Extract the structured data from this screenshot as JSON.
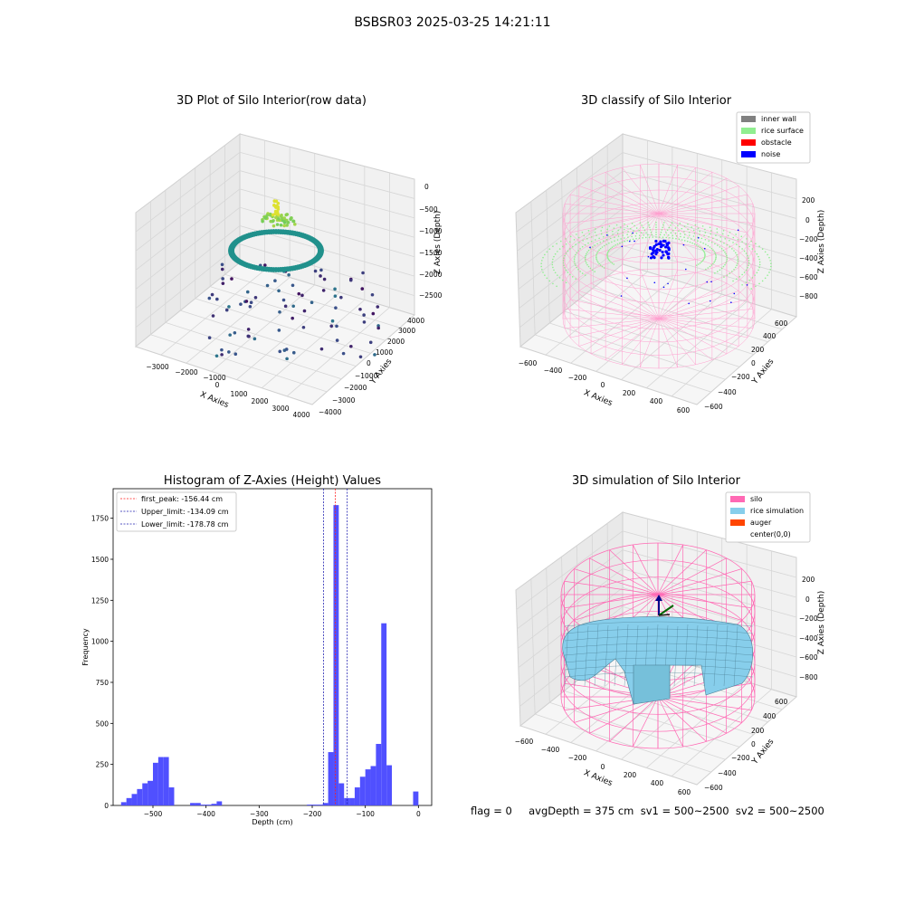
{
  "suptitle": "BSBSR03 2025-03-25 14:21:11",
  "footer": "flag = 0     avgDepth = 375 cm  sv1 = 500~2500  sv2 = 500~2500",
  "colors": {
    "hist_bar": "#5050ff",
    "peak_line": "#ff2020",
    "limit_line": "#2020b0",
    "inner_wall": "#808080",
    "rice_surface": "#90ee90",
    "obstacle": "#ff0000",
    "noise": "#0000ff",
    "silo": "#ff69b4",
    "rice_simulation": "#87ceeb",
    "auger": "#ff4500"
  },
  "chart_data": [
    {
      "type": "scatter",
      "title": "3D Plot of Silo Interior(row data)",
      "xlabel": "X Axies",
      "ylabel": "Y Axies",
      "zlabel": "Z Axies (Depth)",
      "x_ticks": [
        "−3000",
        "−2000",
        "−1000",
        "0",
        "1000",
        "2000",
        "3000",
        "4000"
      ],
      "y_ticks": [
        "−4000",
        "−3000",
        "−2000",
        "−1000",
        "0",
        "1000",
        "2000",
        "3000",
        "4000"
      ],
      "z_ticks": [
        "0",
        "−500",
        "−1000",
        "−1500",
        "−2000",
        "−2500"
      ],
      "colormap": "viridis"
    },
    {
      "type": "scatter",
      "title": "3D classify of Silo Interior",
      "xlabel": "X Axies",
      "ylabel": "Y Axies",
      "zlabel": "Z Axies (Depth)",
      "x_ticks": [
        "−600",
        "−400",
        "−200",
        "0",
        "200",
        "400",
        "600"
      ],
      "y_ticks": [
        "−600",
        "−400",
        "−200",
        "0",
        "200",
        "400",
        "600"
      ],
      "z_ticks": [
        "200",
        "0",
        "−200",
        "−400",
        "−600",
        "−800"
      ],
      "legend": [
        "inner wall",
        "rice surface",
        "obstacle",
        "noise"
      ],
      "legend_position": "top-right"
    },
    {
      "type": "bar",
      "title": "Histogram of Z-Axies (Height) Values",
      "xlabel": "Depth (cm)",
      "ylabel": "Frequency",
      "xlim": [
        -575,
        25
      ],
      "ylim": [
        0,
        1930
      ],
      "x_ticks": [
        -500,
        -400,
        -300,
        -200,
        -100,
        0
      ],
      "x_tick_labels": [
        "−500",
        "−400",
        "−300",
        "−200",
        "−100",
        "0"
      ],
      "y_ticks": [
        0,
        250,
        500,
        750,
        1000,
        1250,
        1500,
        1750
      ],
      "bin_width": 10,
      "bins": [
        [
          -560,
          20
        ],
        [
          -550,
          45
        ],
        [
          -540,
          70
        ],
        [
          -530,
          100
        ],
        [
          -520,
          135
        ],
        [
          -510,
          150
        ],
        [
          -500,
          260
        ],
        [
          -490,
          295
        ],
        [
          -480,
          295
        ],
        [
          -470,
          110
        ],
        [
          -430,
          15
        ],
        [
          -420,
          15
        ],
        [
          -410,
          5
        ],
        [
          -400,
          5
        ],
        [
          -390,
          10
        ],
        [
          -380,
          25
        ],
        [
          -210,
          5
        ],
        [
          -200,
          5
        ],
        [
          -190,
          5
        ],
        [
          -180,
          15
        ],
        [
          -170,
          325
        ],
        [
          -160,
          1830
        ],
        [
          -150,
          135
        ],
        [
          -140,
          45
        ],
        [
          -130,
          45
        ],
        [
          -120,
          110
        ],
        [
          -110,
          175
        ],
        [
          -100,
          220
        ],
        [
          -90,
          240
        ],
        [
          -80,
          375
        ],
        [
          -70,
          1110
        ],
        [
          -60,
          245
        ],
        [
          -10,
          85
        ]
      ],
      "vlines": [
        {
          "label": "first_peak: -156.44 cm",
          "x": -156.44,
          "style": "peak"
        },
        {
          "label": "Upper_limit: -134.09 cm",
          "x": -134.09,
          "style": "limit"
        },
        {
          "label": "Lower_limit: -178.78 cm",
          "x": -178.78,
          "style": "limit"
        }
      ],
      "legend_position": "top-left"
    },
    {
      "type": "area",
      "title": "3D simulation of Silo Interior",
      "xlabel": "X Axies",
      "ylabel": "Y Axies",
      "zlabel": "Z Axies (Depth)",
      "x_ticks": [
        "−600",
        "−400",
        "−200",
        "0",
        "200",
        "400",
        "600"
      ],
      "y_ticks": [
        "−600",
        "−400",
        "−200",
        "0",
        "200",
        "400",
        "600"
      ],
      "z_ticks": [
        "200",
        "0",
        "−200",
        "−400",
        "−600",
        "−800"
      ],
      "legend": [
        "silo",
        "rice simulation",
        "auger",
        "center(0,0)"
      ],
      "legend_position": "top-right"
    }
  ]
}
